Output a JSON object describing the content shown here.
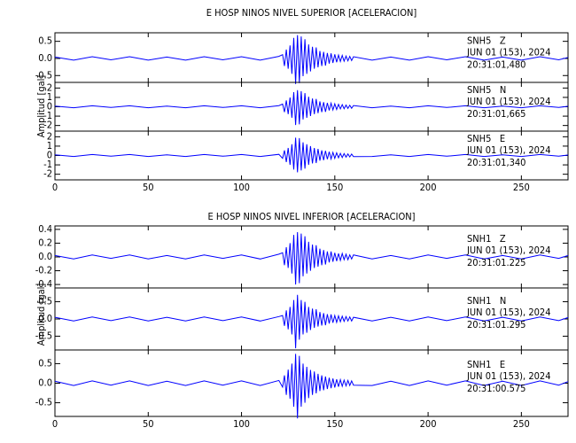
{
  "chart_data": [
    {
      "type": "line",
      "title": "E HOSP NINOS NIVEL SUPERIOR [ACELERACION]",
      "ylabel": "Amplitud [gal]",
      "x": [
        0,
        10,
        20,
        30,
        40,
        50,
        60,
        70,
        80,
        90,
        100,
        110,
        120,
        122,
        123,
        124,
        125,
        126,
        127,
        128,
        129,
        130,
        131,
        132,
        133,
        134,
        135,
        136,
        137,
        138,
        139,
        140,
        141,
        142,
        143,
        144,
        145,
        146,
        147,
        148,
        149,
        150,
        151,
        152,
        153,
        154,
        155,
        156,
        157,
        158,
        159,
        160,
        170,
        180,
        190,
        200,
        210,
        220,
        230,
        240,
        250,
        260,
        270,
        275
      ],
      "xlim": [
        0,
        275
      ],
      "xticks": [
        0,
        50,
        100,
        150,
        200,
        250
      ],
      "panels": [
        {
          "label": "SNH5   Z",
          "date": "JUN 01 (153), 2024",
          "time": "20:31:01,480",
          "color": "#0000ff",
          "ylim": [
            -0.7,
            0.75
          ],
          "yticks": [
            0.5,
            {
              "value": 0,
              "label": "0.0"
            },
            -0.5
          ],
          "values": [
            0.04,
            -0.05,
            0.05,
            -0.04,
            0.05,
            -0.05,
            0.04,
            -0.05,
            0.05,
            -0.04,
            0.05,
            -0.05,
            0.06,
            0.11,
            -0.22,
            0.26,
            -0.3,
            0.38,
            -0.45,
            0.6,
            -0.75,
            0.68,
            -0.72,
            0.64,
            -0.52,
            0.56,
            -0.45,
            0.41,
            -0.38,
            0.34,
            -0.3,
            0.32,
            -0.26,
            0.22,
            -0.22,
            0.19,
            -0.21,
            0.16,
            -0.15,
            0.15,
            -0.13,
            0.12,
            -0.11,
            0.1,
            -0.09,
            0.09,
            -0.08,
            0.07,
            -0.07,
            0.06,
            -0.06,
            0.05,
            -0.05,
            0.04,
            -0.05,
            0.05,
            -0.04,
            0.05,
            -0.05,
            0.04,
            -0.05,
            0.05,
            -0.04,
            0.03
          ]
        },
        {
          "label": "SNH5   N",
          "date": "JUN 01 (153), 2024",
          "time": "20:31:01,665",
          "color": "#0000ff",
          "ylim": [
            -2.6,
            2.6
          ],
          "yticks": [
            2,
            1,
            0,
            -1,
            -2
          ],
          "values": [
            0.08,
            -0.1,
            0.1,
            -0.08,
            0.1,
            -0.1,
            0.08,
            -0.1,
            0.1,
            -0.08,
            0.1,
            -0.1,
            0.12,
            0.29,
            -0.57,
            0.68,
            -0.78,
            0.99,
            -1.17,
            1.56,
            -1.95,
            1.77,
            -1.87,
            1.66,
            -1.35,
            1.46,
            -1.17,
            1.07,
            -0.99,
            0.88,
            -0.78,
            0.83,
            -0.68,
            0.57,
            -0.57,
            0.49,
            -0.55,
            0.42,
            -0.39,
            0.39,
            -0.34,
            0.31,
            -0.29,
            0.26,
            -0.23,
            0.23,
            -0.21,
            0.18,
            -0.18,
            0.16,
            -0.16,
            0.13,
            -0.1,
            0.08,
            -0.1,
            0.1,
            -0.08,
            0.1,
            -0.1,
            0.08,
            -0.1,
            0.1,
            -0.08,
            0.06
          ]
        },
        {
          "label": "SNH5   E",
          "date": "JUN 01 (153), 2024",
          "time": "20:31:01,340",
          "color": "#0000ff",
          "ylim": [
            -2.6,
            2.6
          ],
          "yticks": [
            2,
            1,
            0,
            -1,
            -2
          ],
          "values": [
            0.08,
            -0.1,
            0.1,
            -0.08,
            0.1,
            -0.1,
            0.08,
            -0.1,
            0.1,
            -0.08,
            0.1,
            -0.1,
            0.12,
            -0.3,
            0.55,
            -0.7,
            0.8,
            -1.0,
            1.2,
            -1.5,
            1.9,
            -1.8,
            1.85,
            -1.6,
            1.4,
            -1.4,
            1.2,
            -1.0,
            1.0,
            -0.85,
            0.8,
            -0.8,
            0.7,
            -0.55,
            0.55,
            -0.5,
            0.5,
            -0.4,
            0.4,
            -0.38,
            0.33,
            -0.3,
            0.28,
            -0.25,
            0.23,
            -0.22,
            0.2,
            -0.18,
            0.17,
            -0.15,
            0.15,
            -0.12,
            -0.1,
            0.08,
            -0.1,
            0.1,
            -0.08,
            0.1,
            -0.1,
            0.08,
            -0.1,
            0.1,
            -0.08,
            0.06
          ]
        }
      ]
    },
    {
      "type": "line",
      "title": "E HOSP NINOS NIVEL INFERIOR [ACELERACION]",
      "ylabel": "Amplitud [gal]",
      "x": [
        0,
        10,
        20,
        30,
        40,
        50,
        60,
        70,
        80,
        90,
        100,
        110,
        120,
        122,
        123,
        124,
        125,
        126,
        127,
        128,
        129,
        130,
        131,
        132,
        133,
        134,
        135,
        136,
        137,
        138,
        139,
        140,
        141,
        142,
        143,
        144,
        145,
        146,
        147,
        148,
        149,
        150,
        151,
        152,
        153,
        154,
        155,
        156,
        157,
        158,
        159,
        160,
        170,
        180,
        190,
        200,
        210,
        220,
        230,
        240,
        250,
        260,
        270,
        275
      ],
      "xlim": [
        0,
        275
      ],
      "xticks": [
        0,
        50,
        100,
        150,
        200,
        250
      ],
      "panels": [
        {
          "label": "SNH1   Z",
          "date": "JUN 01 (153), 2024",
          "time": "20:31:01.225",
          "color": "#0000ff",
          "ylim": [
            -0.45,
            0.45
          ],
          "yticks": [
            0.4,
            0.2,
            {
              "value": 0,
              "label": "0.0"
            },
            -0.2,
            -0.4
          ],
          "values": [
            0.02,
            -0.03,
            0.03,
            -0.02,
            0.03,
            -0.03,
            0.02,
            -0.03,
            0.03,
            -0.02,
            0.03,
            -0.03,
            0.04,
            0.06,
            -0.12,
            0.14,
            -0.16,
            0.2,
            -0.24,
            0.32,
            -0.4,
            0.36,
            -0.38,
            0.34,
            -0.28,
            0.3,
            -0.24,
            0.22,
            -0.2,
            0.18,
            -0.16,
            0.17,
            -0.14,
            0.12,
            -0.12,
            0.1,
            -0.11,
            0.08,
            -0.08,
            0.08,
            -0.07,
            0.06,
            -0.06,
            0.05,
            -0.05,
            0.05,
            -0.04,
            0.04,
            -0.04,
            0.03,
            -0.03,
            0.03,
            -0.03,
            0.02,
            -0.03,
            0.03,
            -0.02,
            0.03,
            -0.03,
            0.02,
            -0.03,
            0.03,
            -0.02,
            0.02
          ]
        },
        {
          "label": "SNH1   N",
          "date": "JUN 01 (153), 2024",
          "time": "20:31:01.295",
          "color": "#0000ff",
          "ylim": [
            -0.9,
            0.9
          ],
          "yticks": [
            0.5,
            {
              "value": 0,
              "label": "0.0"
            },
            -0.5
          ],
          "values": [
            0.05,
            -0.06,
            0.06,
            -0.05,
            0.06,
            -0.06,
            0.05,
            -0.06,
            0.06,
            -0.05,
            0.06,
            -0.06,
            0.07,
            0.1,
            -0.2,
            0.25,
            -0.3,
            0.35,
            -0.45,
            0.55,
            -0.85,
            0.7,
            -0.6,
            0.55,
            -0.45,
            0.5,
            -0.4,
            0.35,
            -0.32,
            0.3,
            -0.26,
            0.28,
            -0.22,
            0.2,
            -0.19,
            0.17,
            -0.18,
            0.14,
            -0.13,
            0.13,
            -0.11,
            0.1,
            -0.1,
            0.09,
            -0.08,
            0.08,
            -0.07,
            0.07,
            -0.06,
            0.06,
            -0.06,
            0.05,
            -0.06,
            0.05,
            -0.06,
            0.06,
            -0.05,
            0.06,
            -0.06,
            0.05,
            -0.06,
            0.06,
            -0.05,
            0.04
          ]
        },
        {
          "label": "SNH1   E",
          "date": "JUN 01 (153), 2024",
          "time": "20:31:00.575",
          "color": "#0000ff",
          "ylim": [
            -0.85,
            0.85
          ],
          "yticks": [
            0.5,
            {
              "value": 0,
              "label": "0.0"
            },
            -0.5
          ],
          "values": [
            0.05,
            -0.06,
            0.06,
            -0.05,
            0.06,
            -0.06,
            0.05,
            -0.06,
            0.06,
            -0.05,
            0.06,
            -0.06,
            0.07,
            -0.1,
            0.2,
            -0.3,
            0.35,
            -0.4,
            0.5,
            -0.6,
            0.75,
            -0.9,
            0.7,
            -0.6,
            0.5,
            -0.5,
            0.42,
            -0.38,
            0.34,
            -0.3,
            0.3,
            -0.26,
            0.24,
            -0.2,
            0.2,
            -0.18,
            0.17,
            -0.15,
            0.14,
            -0.13,
            0.12,
            -0.11,
            0.1,
            -0.09,
            0.09,
            -0.08,
            0.08,
            -0.07,
            0.07,
            -0.06,
            0.06,
            -0.05,
            -0.06,
            0.05,
            -0.06,
            0.06,
            -0.05,
            0.06,
            -0.06,
            0.05,
            -0.06,
            0.06,
            -0.05,
            0.04
          ]
        }
      ]
    }
  ]
}
